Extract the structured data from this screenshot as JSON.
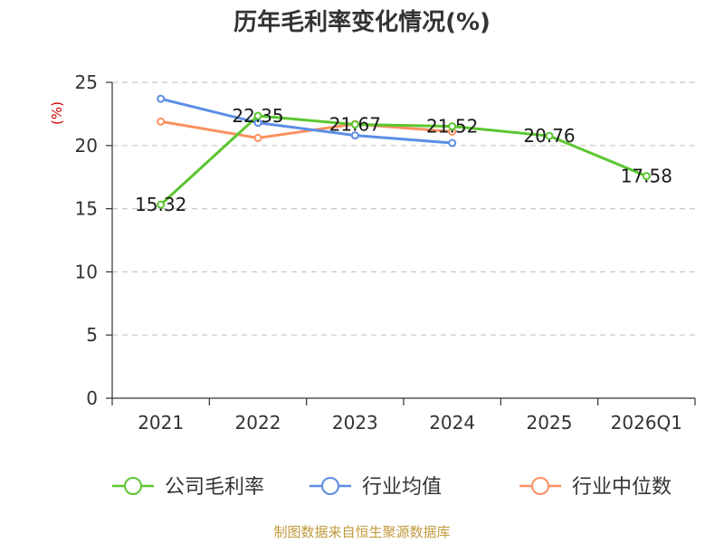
{
  "chart_data": {
    "type": "line",
    "title": "历年毛利率变化情况(%)",
    "ylabel": "(%)",
    "xlabel": "",
    "categories": [
      "2021",
      "2022",
      "2023",
      "2024",
      "2025",
      "2026Q1"
    ],
    "ylim": [
      0,
      25
    ],
    "yticks": [
      "0",
      "5",
      "10",
      "15",
      "20",
      "25"
    ],
    "grid": true,
    "legend_position": "bottom",
    "series": [
      {
        "name": "公司毛利率",
        "color": "#5cc630",
        "values": [
          15.32,
          22.35,
          21.67,
          21.52,
          20.76,
          17.58
        ],
        "labels": [
          "15.32",
          "22.35",
          "21.67",
          "21.52",
          "20.76",
          "17.58"
        ]
      },
      {
        "name": "行业均值",
        "color": "#5b8ee6",
        "values": [
          23.7,
          21.8,
          20.8,
          20.2,
          null,
          null
        ]
      },
      {
        "name": "行业中位数",
        "color": "#fa9060",
        "values": [
          21.9,
          20.6,
          21.7,
          21.1,
          null,
          null
        ]
      }
    ]
  },
  "source_note": "制图数据来自恒生聚源数据库",
  "colors": {
    "title": "#333333",
    "axis": "#333333",
    "grid": "#c8c8c8",
    "y_unit": "#cc0000",
    "source_note": "#c09a3c"
  }
}
